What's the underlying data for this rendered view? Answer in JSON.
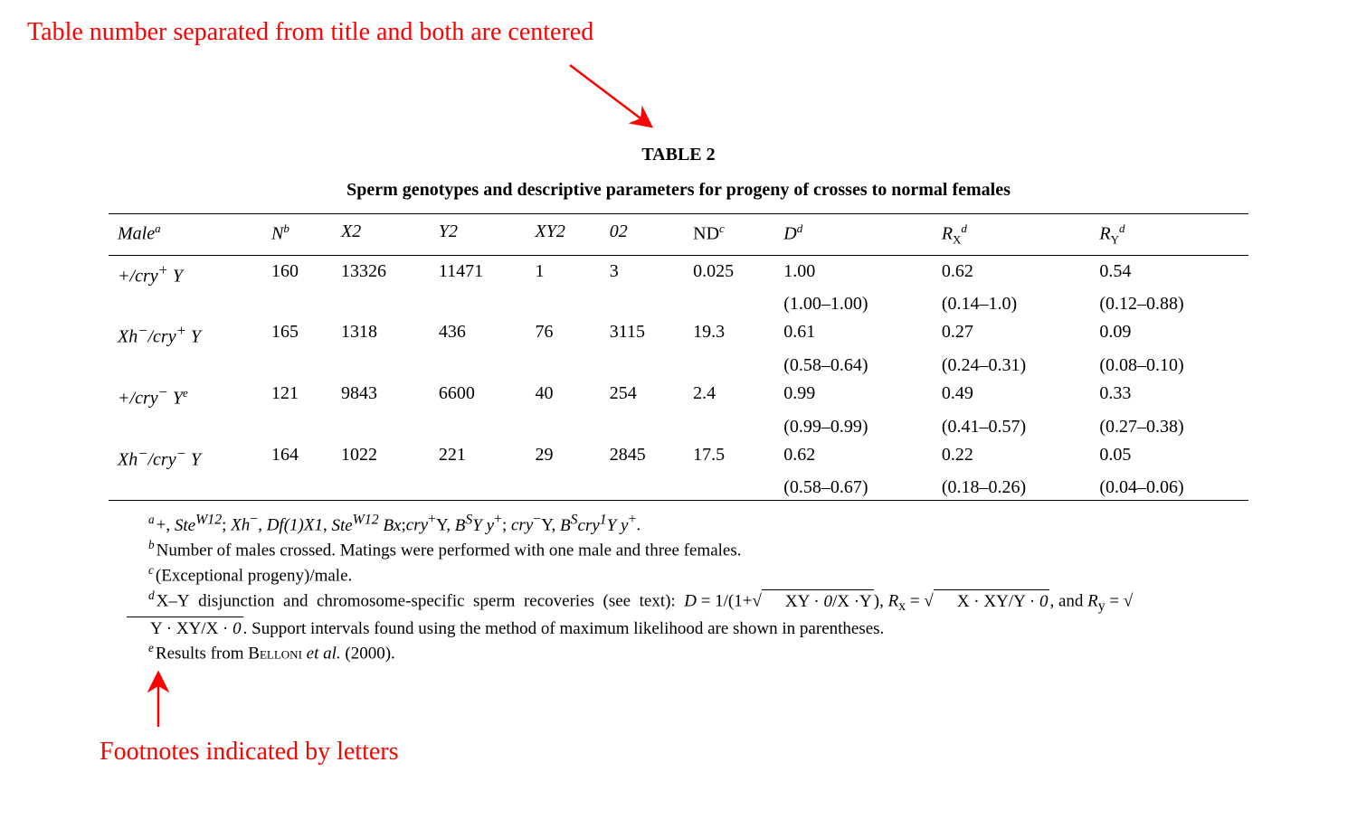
{
  "annotations": {
    "top": "Table number separated from title and both are centered",
    "bottom": "Footnotes indicated by letters",
    "color": "#ff0000",
    "fontsize_pt": 28
  },
  "arrows": {
    "top": {
      "stroke": "#ff0000",
      "stroke_width": 2.5
    },
    "bottom": {
      "stroke": "#ff0000",
      "stroke_width": 2.5
    }
  },
  "table": {
    "number": "TABLE 2",
    "title": "Sperm genotypes and descriptive parameters for progeny of crosses to normal females",
    "border_color": "#000000",
    "fontsize_pt": 20,
    "columns": [
      {
        "label_html": "Male<span class='sup'>a</span>",
        "key": "male"
      },
      {
        "label_html": "<span class='hdr-ital'>N</span><span class='sup'>b</span>",
        "key": "N"
      },
      {
        "label_html": "<span class='hdr-ital'>X2</span>",
        "key": "X2"
      },
      {
        "label_html": "<span class='hdr-ital'>Y2</span>",
        "key": "Y2"
      },
      {
        "label_html": "<span class='hdr-ital'>XY2</span>",
        "key": "XY2"
      },
      {
        "label_html": "<span class='hdr-ital'>02</span>",
        "key": "O2"
      },
      {
        "label_html": "ND<span class='sup'>c</span>",
        "key": "ND"
      },
      {
        "label_html": "<span class='hdr-ital'>D</span><span class='sup'>d</span>",
        "key": "D"
      },
      {
        "label_html": "<span class='hdr-ital'>R</span><span class='sub'>X</span><span class='sup'>d</span>",
        "key": "Rx"
      },
      {
        "label_html": "<span class='hdr-ital'>R</span><span class='sub'>Y</span><span class='sup'>d</span>",
        "key": "Ry"
      }
    ],
    "rows": [
      {
        "male_html": "+/<span class='ital'>cry</span><sup>+</sup> Y",
        "N": "160",
        "X2": "13326",
        "Y2": "11471",
        "XY2": "1",
        "O2": "3",
        "ND": "0.025",
        "D": "1.00",
        "D_range": "(1.00–1.00)",
        "Rx": "0.62",
        "Rx_range": "(0.14–1.0)",
        "Ry": "0.54",
        "Ry_range": "(0.12–0.88)"
      },
      {
        "male_html": "<span class='ital'>Xh</span><sup>−</sup>/<span class='ital'>cry</span><sup>+</sup> Y",
        "N": "165",
        "X2": "1318",
        "Y2": "436",
        "XY2": "76",
        "O2": "3115",
        "ND": "19.3",
        "D": "0.61",
        "D_range": "(0.58–0.64)",
        "Rx": "0.27",
        "Rx_range": "(0.24–0.31)",
        "Ry": "0.09",
        "Ry_range": "(0.08–0.10)"
      },
      {
        "male_html": "+/<span class='ital'>cry</span><sup>−</sup> Y<span class='sup'>e</span>",
        "N": "121",
        "X2": "9843",
        "Y2": "6600",
        "XY2": "40",
        "O2": "254",
        "ND": "2.4",
        "D": "0.99",
        "D_range": "(0.99–0.99)",
        "Rx": "0.49",
        "Rx_range": "(0.41–0.57)",
        "Ry": "0.33",
        "Ry_range": "(0.27–0.38)"
      },
      {
        "male_html": "<span class='ital'>Xh</span><sup>−</sup>/<span class='ital'>cry</span><sup>−</sup> Y",
        "N": "164",
        "X2": "1022",
        "Y2": "221",
        "XY2": "29",
        "O2": "2845",
        "ND": "17.5",
        "D": "0.62",
        "D_range": "(0.58–0.67)",
        "Rx": "0.22",
        "Rx_range": "(0.18–0.26)",
        "Ry": "0.05",
        "Ry_range": "(0.04–0.06)"
      }
    ],
    "footnotes": [
      {
        "mark": "a",
        "html": "+, <span class='ital'>Ste<sup>W12</sup></span>; <span class='ital'>Xh</span><sup>−</sup>, <span class='ital'>Df(1)X1</span>, <span class='ital'>Ste<sup>W12</sup> Bx</span>;<span class='ital'>cry</span><sup>+</sup>Y, <span class='ital'>B<sup>S</sup>Y y</span><sup>+</sup>; <span class='ital'>cry</span><sup>−</sup>Y, <span class='ital'>B<sup>S</sup>cry<sup>1</sup>Y y</span><sup>+</sup>."
      },
      {
        "mark": "b",
        "html": "Number of males crossed. Matings were performed with one male and three females."
      },
      {
        "mark": "c",
        "html": "(Exceptional progeny)/male."
      },
      {
        "mark": "d",
        "html": "X–Y&nbsp; disjunction&nbsp; and&nbsp; chromosome-specific&nbsp; sperm&nbsp; recoveries&nbsp; (see&nbsp; text):&nbsp; <span class='ital'>D</span> = 1/(1+√<span class='sqrt'>XY · <span class='ital'>0</span>/X ·Y</span>), <span class='ital'>R</span><sub>x</sub> = √<span class='sqrt'>X · XY/Y · <span class='ital'>0</span></span>, and <span class='ital'>R</span><sub>y</sub> = √<span class='sqrt'>Y · XY/X · <span class='ital'>0</span></span>. Support intervals found using the method of maximum likelihood are shown in parentheses."
      },
      {
        "mark": "e",
        "html": "Results from <span class='smcaps'>Belloni</span> <span class='ital'>et al.</span> (2000)."
      }
    ]
  }
}
